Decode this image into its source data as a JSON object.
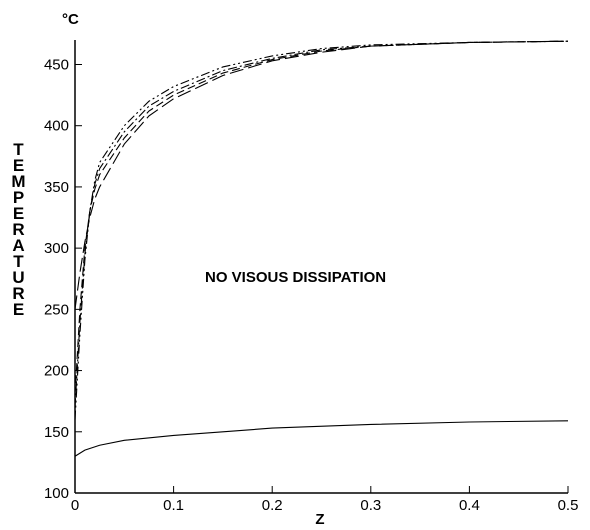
{
  "chart_data": {
    "type": "line",
    "unit_label": "°C",
    "ylabel": "TEMPERATURE",
    "xlabel": "Z",
    "annotation": "NO VISOUS DISSIPATION",
    "xlim": [
      0,
      0.5
    ],
    "ylim": [
      100,
      470
    ],
    "xticks": [
      0,
      0.1,
      0.2,
      0.3,
      0.4,
      0.5
    ],
    "yticks": [
      100,
      150,
      200,
      250,
      300,
      350,
      400,
      450
    ],
    "grid": false,
    "series": [
      {
        "color": "#000000",
        "line_style": "dashdotdot",
        "x": [
          0,
          0.005,
          0.01,
          0.015,
          0.02,
          0.025,
          0.05,
          0.075,
          0.1,
          0.15,
          0.2,
          0.25,
          0.3,
          0.4,
          0.5
        ],
        "values": [
          160,
          230,
          290,
          330,
          355,
          370,
          400,
          420,
          432,
          448,
          457,
          463,
          466,
          468,
          469
        ]
      },
      {
        "color": "#000000",
        "line_style": "dashdot",
        "x": [
          0,
          0.005,
          0.01,
          0.015,
          0.02,
          0.025,
          0.05,
          0.075,
          0.1,
          0.15,
          0.2,
          0.25,
          0.3,
          0.4,
          0.5
        ],
        "values": [
          170,
          240,
          295,
          330,
          352,
          365,
          395,
          416,
          428,
          445,
          455,
          462,
          465,
          468,
          469
        ]
      },
      {
        "color": "#000000",
        "line_style": "dash",
        "x": [
          0,
          0.005,
          0.01,
          0.015,
          0.02,
          0.025,
          0.05,
          0.075,
          0.1,
          0.15,
          0.2,
          0.25,
          0.3,
          0.4,
          0.5
        ],
        "values": [
          180,
          250,
          300,
          330,
          348,
          360,
          390,
          412,
          425,
          443,
          454,
          461,
          465,
          468,
          469
        ]
      },
      {
        "color": "#000000",
        "line_style": "longdash",
        "x": [
          0,
          0.005,
          0.01,
          0.015,
          0.02,
          0.025,
          0.05,
          0.075,
          0.1,
          0.15,
          0.2,
          0.25,
          0.3,
          0.4,
          0.5
        ],
        "values": [
          250,
          280,
          305,
          325,
          340,
          350,
          385,
          408,
          422,
          441,
          453,
          460,
          465,
          468,
          469
        ]
      },
      {
        "color": "#000000",
        "line_style": "solid",
        "x": [
          0,
          0.01,
          0.025,
          0.05,
          0.1,
          0.15,
          0.2,
          0.3,
          0.4,
          0.5
        ],
        "values": [
          130,
          135,
          139,
          143,
          147,
          150,
          153,
          156,
          158,
          159
        ]
      }
    ]
  }
}
